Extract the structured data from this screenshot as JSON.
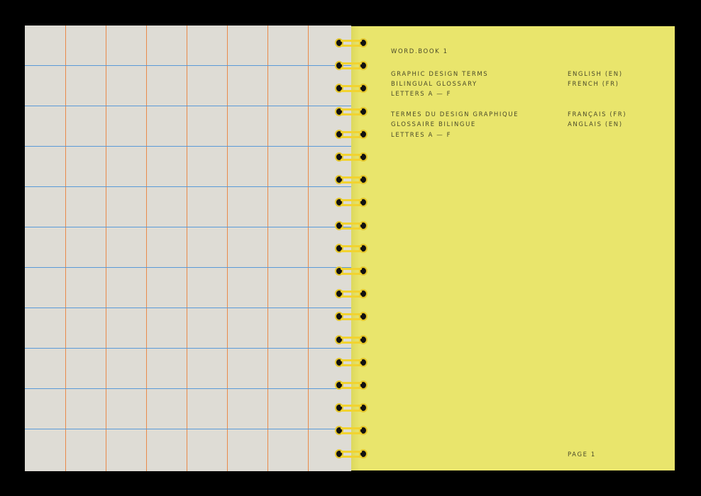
{
  "page": {
    "title": "WORD.BOOK 1",
    "english_block": {
      "lines": [
        "GRAPHIC DESIGN TERMS",
        "BILINGUAL GLOSSARY",
        "LETTERS A — F"
      ],
      "languages": [
        "ENGLISH (EN)",
        "FRENCH (FR)"
      ]
    },
    "french_block": {
      "lines": [
        "TERMES DU DESIGN GRAPHIQUE",
        "GLOSSAIRE BILINGUE",
        "LETTRES A — F"
      ],
      "languages": [
        "FRANÇAIS (FR)",
        "ANGLAIS (EN)"
      ]
    },
    "page_number": "PAGE 1"
  },
  "colors": {
    "yellow_page": "#e9e56c",
    "grid_paper": "#dedcd5",
    "grid_vertical": "#e98a4a",
    "grid_horizontal": "#5a9ad8",
    "spiral": "#f2d330"
  }
}
